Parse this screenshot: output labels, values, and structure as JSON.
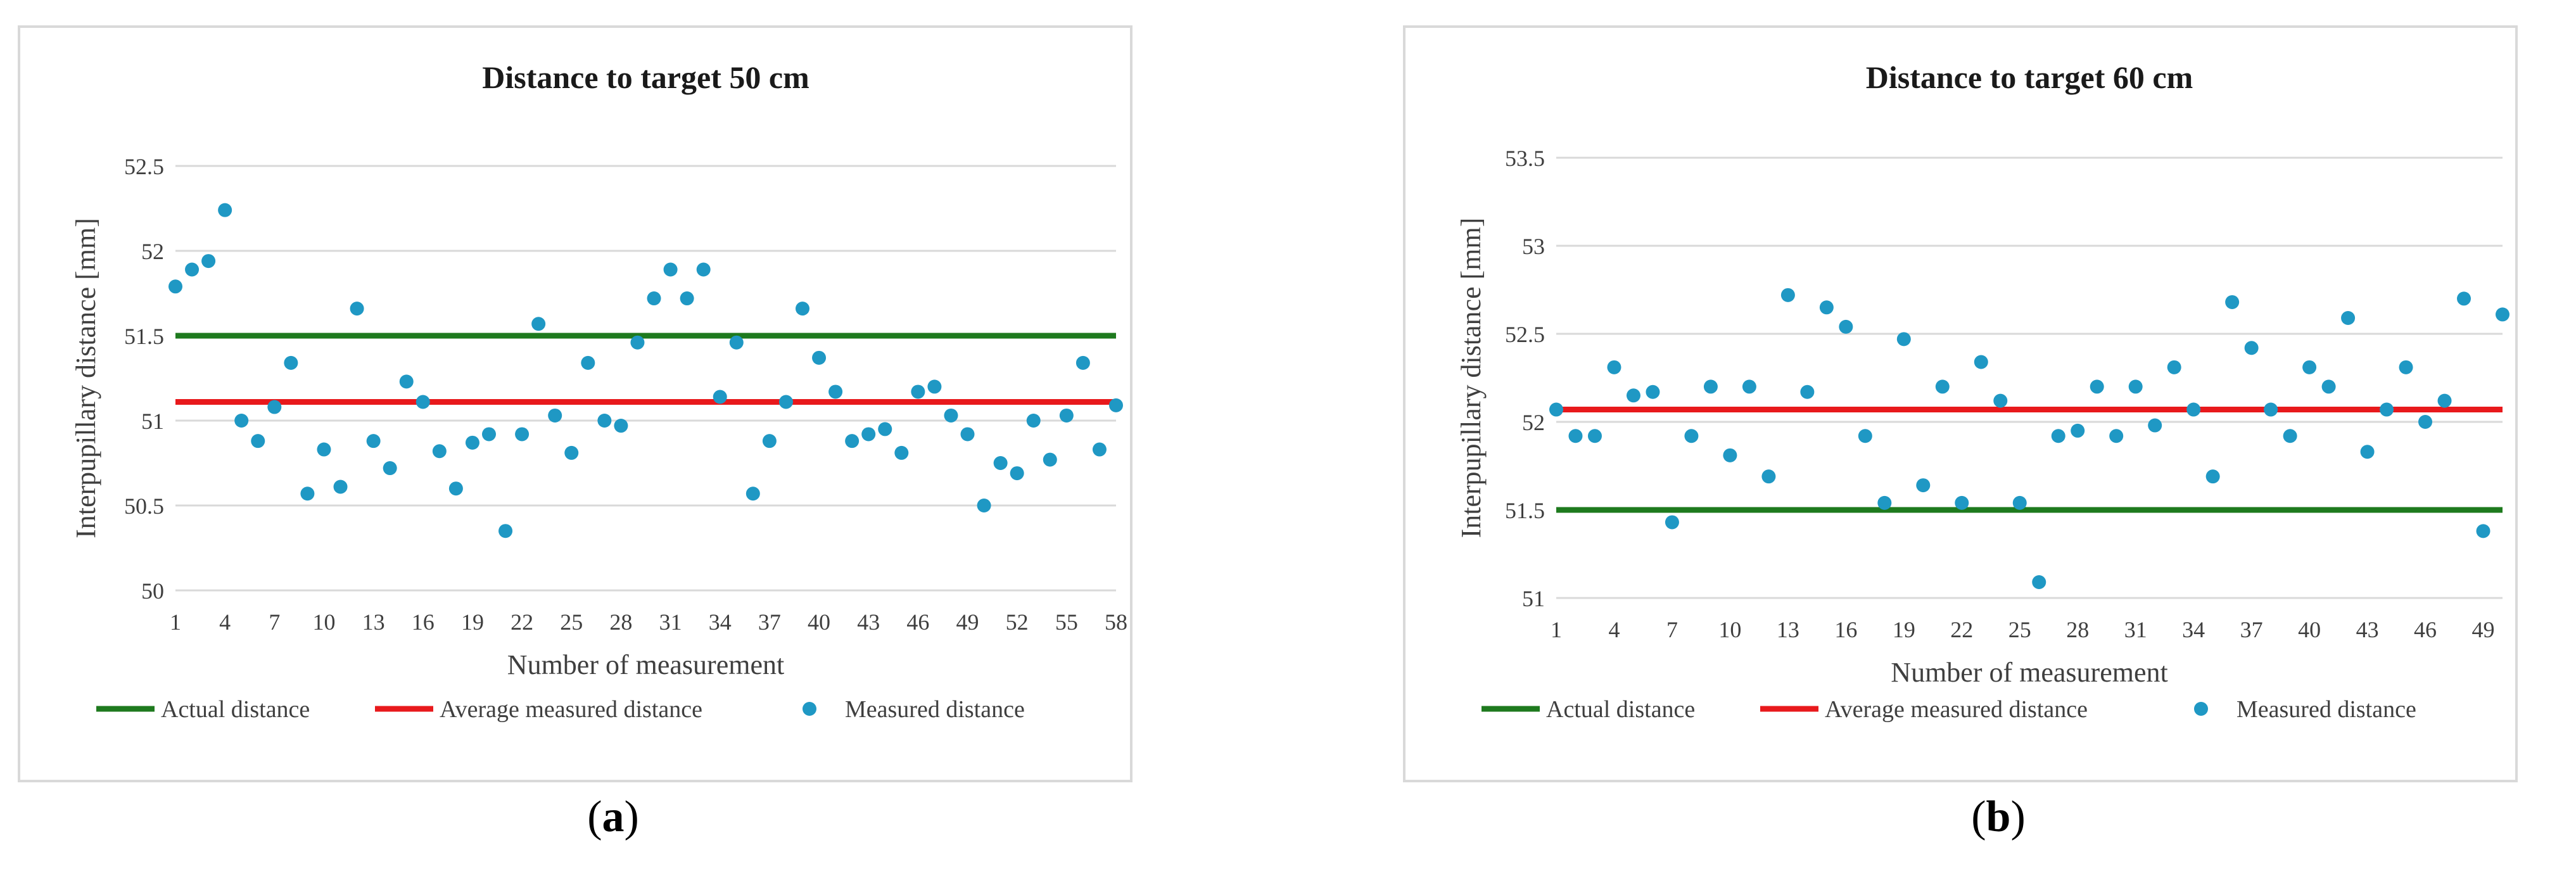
{
  "colors": {
    "actual": "#1e7a1e",
    "average": "#e8191c",
    "measured": "#1f98c4",
    "grid": "#d9d9d9",
    "text": "#3f3f3f"
  },
  "captions": [
    {
      "open": "(",
      "label": "a",
      "close": ")"
    },
    {
      "open": "(",
      "label": "b",
      "close": ")"
    }
  ],
  "chart_data": [
    {
      "type": "scatter",
      "title": "Distance to target 50 cm",
      "xlabel": "Number of measurement",
      "ylabel": "Interpupillary distance [mm]",
      "xlim": [
        1,
        58
      ],
      "ylim": [
        50,
        52.5
      ],
      "yticks": [
        50,
        50.5,
        51,
        51.5,
        52,
        52.5
      ],
      "yticklabels": [
        "50",
        "50.5",
        "51",
        "51.5",
        "52",
        "52.5"
      ],
      "xticks": [
        1,
        4,
        7,
        10,
        13,
        16,
        19,
        22,
        25,
        28,
        31,
        34,
        37,
        40,
        43,
        46,
        49,
        52,
        55,
        58
      ],
      "xticklabels": [
        "1",
        "4",
        "7",
        "10",
        "13",
        "16",
        "19",
        "22",
        "25",
        "28",
        "31",
        "34",
        "37",
        "40",
        "43",
        "46",
        "49",
        "52",
        "55",
        "58"
      ],
      "grid": "horizontal",
      "legend": "bottom",
      "series": [
        {
          "name": "Actual distance",
          "kind": "line",
          "color": "#1e7a1e",
          "x": [
            1,
            58
          ],
          "y": [
            51.5,
            51.5
          ]
        },
        {
          "name": "Average measured distance",
          "kind": "line",
          "color": "#e8191c",
          "x": [
            1,
            58
          ],
          "y": [
            51.11,
            51.11
          ]
        },
        {
          "name": "Measured distance",
          "kind": "scatter",
          "color": "#1f98c4",
          "x": [
            1,
            2,
            3,
            4,
            5,
            6,
            7,
            8,
            9,
            10,
            11,
            12,
            13,
            14,
            15,
            16,
            17,
            18,
            19,
            20,
            21,
            22,
            23,
            24,
            25,
            26,
            27,
            28,
            29,
            30,
            31,
            32,
            33,
            34,
            35,
            36,
            37,
            38,
            39,
            40,
            41,
            42,
            43,
            44,
            45,
            46,
            47,
            48,
            49,
            50,
            51,
            52,
            53,
            54,
            55,
            56,
            57,
            58
          ],
          "y": [
            51.79,
            51.89,
            51.94,
            52.24,
            51.0,
            50.88,
            51.08,
            51.34,
            50.57,
            50.83,
            50.61,
            51.66,
            50.88,
            50.72,
            51.23,
            51.11,
            50.82,
            50.6,
            50.87,
            50.92,
            50.35,
            50.92,
            51.57,
            51.03,
            50.81,
            51.34,
            51.0,
            50.97,
            51.46,
            51.72,
            51.89,
            51.72,
            51.89,
            51.14,
            51.46,
            50.57,
            50.88,
            51.11,
            51.66,
            51.37,
            51.17,
            50.88,
            50.92,
            50.95,
            50.81,
            51.17,
            51.2,
            51.03,
            50.92,
            50.5,
            50.75,
            50.69,
            51.0,
            50.77,
            51.03,
            51.34,
            50.83,
            51.09
          ]
        }
      ]
    },
    {
      "type": "scatter",
      "title": "Distance to target 60 cm",
      "xlabel": "Number of measurement",
      "ylabel": "Interpupillary distance [mm]",
      "xlim": [
        1,
        50
      ],
      "ylim": [
        51,
        53.5
      ],
      "yticks": [
        51,
        51.5,
        52,
        52.5,
        53,
        53.5
      ],
      "yticklabels": [
        "51",
        "51.5",
        "52",
        "52.5",
        "53",
        "53.5"
      ],
      "xticks": [
        1,
        4,
        7,
        10,
        13,
        16,
        19,
        22,
        25,
        28,
        31,
        34,
        37,
        40,
        43,
        46,
        49
      ],
      "xticklabels": [
        "1",
        "4",
        "7",
        "10",
        "13",
        "16",
        "19",
        "22",
        "25",
        "28",
        "31",
        "34",
        "37",
        "40",
        "43",
        "46",
        "49"
      ],
      "grid": "horizontal",
      "legend": "bottom",
      "series": [
        {
          "name": "Actual distance",
          "kind": "line",
          "color": "#1e7a1e",
          "x": [
            1,
            50
          ],
          "y": [
            51.5,
            51.5
          ]
        },
        {
          "name": "Average measured distance",
          "kind": "line",
          "color": "#e8191c",
          "x": [
            1,
            50
          ],
          "y": [
            52.07,
            52.07
          ]
        },
        {
          "name": "Measured distance",
          "kind": "scatter",
          "color": "#1f98c4",
          "x": [
            1,
            2,
            3,
            4,
            5,
            6,
            7,
            8,
            9,
            10,
            11,
            12,
            13,
            14,
            15,
            16,
            17,
            18,
            19,
            20,
            21,
            22,
            23,
            24,
            25,
            26,
            27,
            28,
            29,
            30,
            31,
            32,
            33,
            34,
            35,
            36,
            37,
            38,
            39,
            40,
            41,
            42,
            43,
            44,
            45,
            46,
            47,
            48,
            49,
            50
          ],
          "y": [
            52.07,
            51.92,
            51.92,
            52.31,
            52.15,
            52.17,
            51.43,
            51.92,
            52.2,
            51.81,
            52.2,
            51.69,
            52.72,
            52.17,
            52.65,
            52.54,
            51.92,
            51.54,
            52.47,
            51.64,
            52.2,
            51.54,
            52.34,
            52.12,
            51.54,
            51.09,
            51.92,
            51.95,
            52.2,
            51.92,
            52.2,
            51.98,
            52.31,
            52.07,
            51.69,
            52.68,
            52.42,
            52.07,
            51.92,
            52.31,
            52.2,
            52.59,
            51.83,
            52.07,
            52.31,
            52.0,
            52.12,
            52.7,
            51.38,
            52.61
          ]
        }
      ]
    }
  ]
}
